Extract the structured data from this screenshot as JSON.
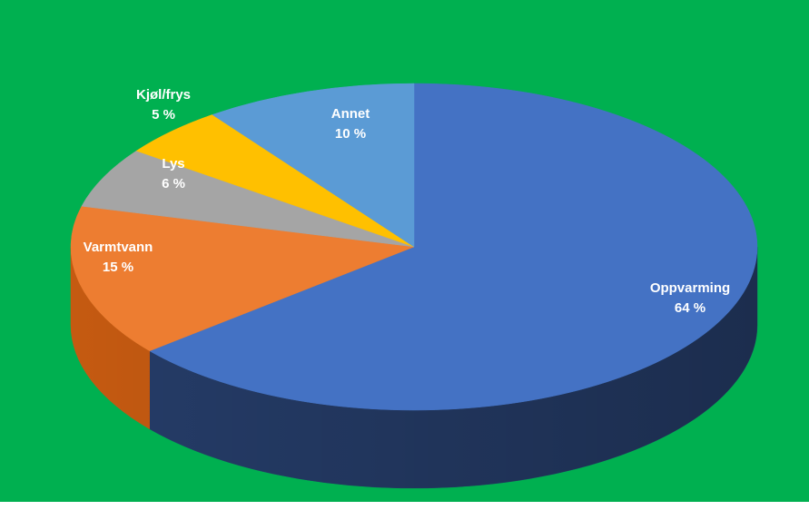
{
  "chart_data": {
    "type": "pie",
    "style": "3d",
    "legend": "none",
    "slices": [
      {
        "label": "Oppvarming",
        "value": 64,
        "value_label": "64 %",
        "color": "#4472C4",
        "side_color": "#253C68",
        "text_color": "#FFFFFF"
      },
      {
        "label": "Varmtvann",
        "value": 15,
        "value_label": "15 %",
        "color": "#ED7D31",
        "side_color": "#C55A11",
        "text_color": "#FFFFFF"
      },
      {
        "label": "Lys",
        "value": 6,
        "value_label": "6 %",
        "color": "#A5A5A5",
        "side_color": "#7F7F7F",
        "text_color": "#FFFFFF"
      },
      {
        "label": "Kjøl/frys",
        "value": 5,
        "value_label": "5 %",
        "color": "#FFC000",
        "side_color": "#BF9000",
        "text_color": "#FFFFFF"
      },
      {
        "label": "Annet",
        "value": 10,
        "value_label": "10 %",
        "color": "#5B9BD5",
        "side_color": "#2E75B6",
        "text_color": "#FFFFFF"
      }
    ]
  },
  "colors": {
    "background": "#00B050"
  }
}
